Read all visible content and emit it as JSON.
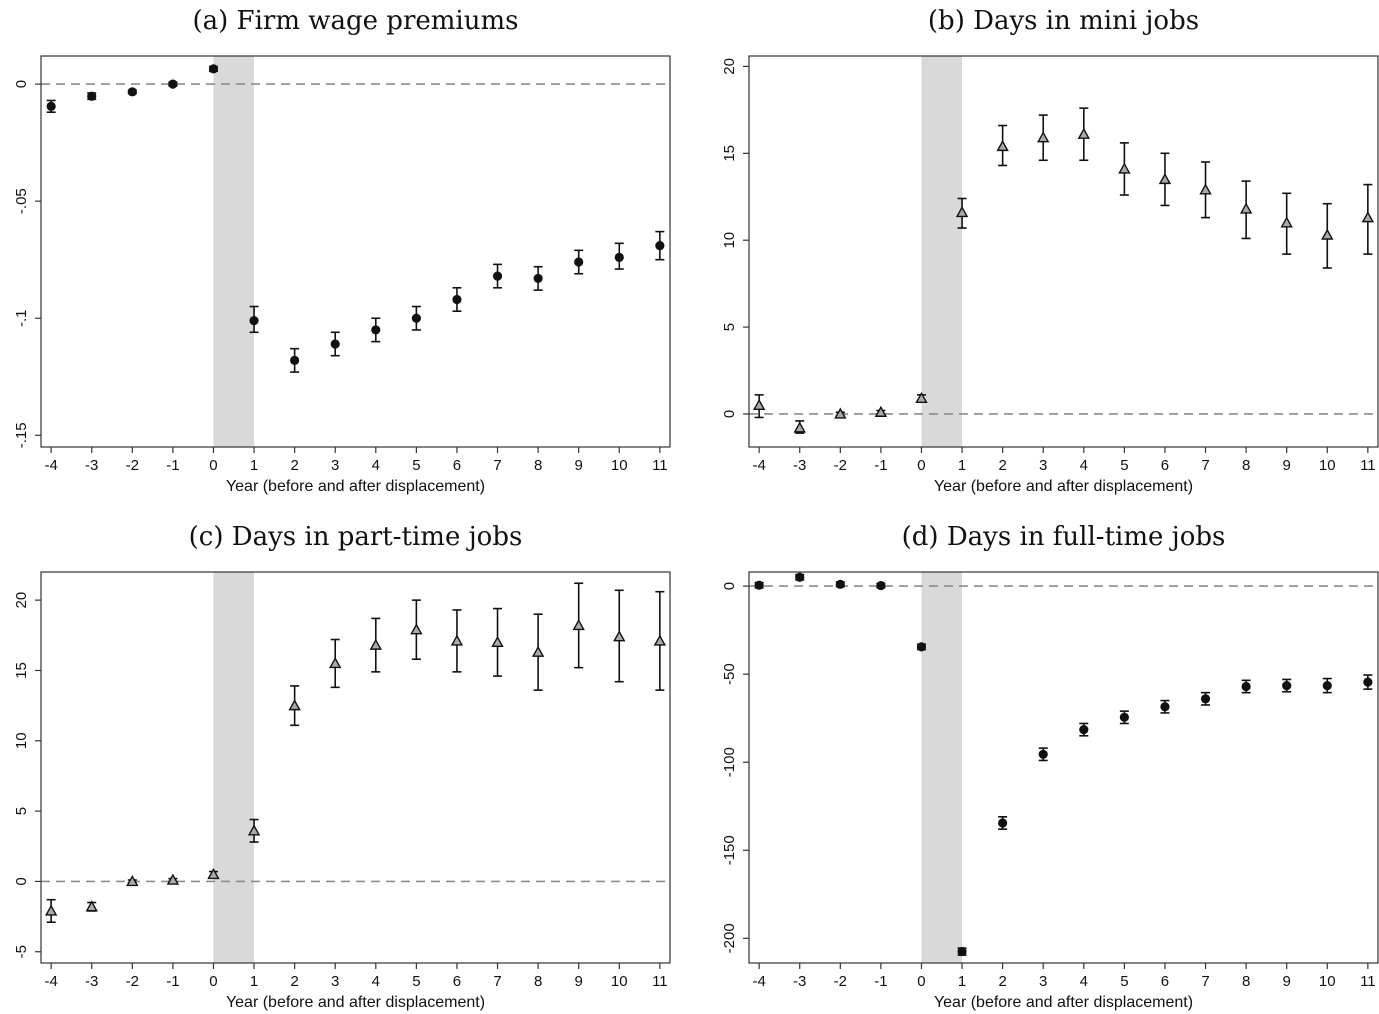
{
  "chart_data": [
    {
      "type": "scatter",
      "title": "(a) Firm wage premiums",
      "xlabel": "Year (before and after displacement)",
      "ylabel": "",
      "x": [
        -4,
        -3,
        -2,
        -1,
        0,
        1,
        2,
        3,
        4,
        5,
        6,
        7,
        8,
        9,
        10,
        11
      ],
      "xticks": [
        "-4",
        "-3",
        "-2",
        "-1",
        "0",
        "1",
        "2",
        "3",
        "4",
        "5",
        "6",
        "7",
        "8",
        "9",
        "10",
        "11"
      ],
      "yticks": [
        0,
        -0.05,
        -0.1,
        -0.15
      ],
      "ytick_labels": [
        "0",
        "-.05",
        "-.1",
        "-.15"
      ],
      "ylim": [
        -0.155,
        0.012
      ],
      "xlim": [
        -4.25,
        11.25
      ],
      "marker": "circle",
      "values": [
        -0.0095,
        -0.0052,
        -0.0033,
        0.0,
        0.0065,
        -0.101,
        -0.118,
        -0.111,
        -0.105,
        -0.1,
        -0.092,
        -0.082,
        -0.083,
        -0.076,
        -0.074,
        -0.069
      ],
      "ci_low": [
        -0.012,
        -0.0065,
        -0.004,
        -0.0008,
        0.0055,
        -0.106,
        -0.123,
        -0.116,
        -0.11,
        -0.105,
        -0.097,
        -0.087,
        -0.088,
        -0.081,
        -0.079,
        -0.075
      ],
      "ci_high": [
        -0.007,
        -0.0038,
        -0.0026,
        0.0008,
        0.0075,
        -0.095,
        -0.113,
        -0.106,
        -0.1,
        -0.095,
        -0.087,
        -0.077,
        -0.078,
        -0.071,
        -0.068,
        -0.063
      ],
      "shaded_x": [
        0,
        1
      ],
      "reference_y": 0
    },
    {
      "type": "scatter",
      "title": "(b) Days in mini jobs",
      "xlabel": "Year (before and after displacement)",
      "ylabel": "",
      "x": [
        -4,
        -3,
        -2,
        -1,
        0,
        1,
        2,
        3,
        4,
        5,
        6,
        7,
        8,
        9,
        10,
        11
      ],
      "xticks": [
        "-4",
        "-3",
        "-2",
        "-1",
        "0",
        "1",
        "2",
        "3",
        "4",
        "5",
        "6",
        "7",
        "8",
        "9",
        "10",
        "11"
      ],
      "yticks": [
        0,
        5,
        10,
        15,
        20
      ],
      "ytick_labels": [
        "0",
        "5",
        "10",
        "15",
        "20"
      ],
      "ylim": [
        -1.9,
        20.6
      ],
      "xlim": [
        -4.25,
        11.25
      ],
      "marker": "triangle",
      "values": [
        0.5,
        -0.8,
        0.0,
        0.1,
        0.9,
        11.6,
        15.4,
        15.9,
        16.1,
        14.1,
        13.5,
        12.9,
        11.8,
        11.0,
        10.3,
        11.3
      ],
      "ci_low": [
        -0.2,
        -1.1,
        -0.1,
        0.0,
        0.7,
        10.7,
        14.3,
        14.6,
        14.6,
        12.6,
        12.0,
        11.3,
        10.1,
        9.2,
        8.4,
        9.2
      ],
      "ci_high": [
        1.1,
        -0.4,
        0.1,
        0.2,
        1.1,
        12.4,
        16.6,
        17.2,
        17.6,
        15.6,
        15.0,
        14.5,
        13.4,
        12.7,
        12.1,
        13.2
      ],
      "shaded_x": [
        0,
        1
      ],
      "reference_y": 0
    },
    {
      "type": "scatter",
      "title": "(c) Days in part-time jobs",
      "xlabel": "Year (before and after displacement)",
      "ylabel": "",
      "x": [
        -4,
        -3,
        -2,
        -1,
        0,
        1,
        2,
        3,
        4,
        5,
        6,
        7,
        8,
        9,
        10,
        11
      ],
      "xticks": [
        "-4",
        "-3",
        "-2",
        "-1",
        "0",
        "1",
        "2",
        "3",
        "4",
        "5",
        "6",
        "7",
        "8",
        "9",
        "10",
        "11"
      ],
      "yticks": [
        -5,
        0,
        5,
        10,
        15,
        20
      ],
      "ytick_labels": [
        "-5",
        "0",
        "5",
        "10",
        "15",
        "20"
      ],
      "ylim": [
        -5.8,
        22.0
      ],
      "xlim": [
        -4.25,
        11.25
      ],
      "marker": "triangle",
      "values": [
        -2.1,
        -1.8,
        0.0,
        0.1,
        0.5,
        3.6,
        12.5,
        15.5,
        16.8,
        17.9,
        17.1,
        17.0,
        16.3,
        18.2,
        17.4,
        17.1
      ],
      "ci_low": [
        -2.9,
        -2.1,
        -0.1,
        0.0,
        0.3,
        2.8,
        11.1,
        13.8,
        14.9,
        15.8,
        14.9,
        14.6,
        13.6,
        15.2,
        14.2,
        13.6
      ],
      "ci_high": [
        -1.3,
        -1.5,
        0.1,
        0.2,
        0.7,
        4.4,
        13.9,
        17.2,
        18.7,
        20.0,
        19.3,
        19.4,
        19.0,
        21.2,
        20.7,
        20.6
      ],
      "shaded_x": [
        0,
        1
      ],
      "reference_y": 0
    },
    {
      "type": "scatter",
      "title": "(d) Days in full-time jobs",
      "xlabel": "Year (before and after displacement)",
      "ylabel": "",
      "x": [
        -4,
        -3,
        -2,
        -1,
        0,
        1,
        2,
        3,
        4,
        5,
        6,
        7,
        8,
        9,
        10,
        11
      ],
      "xticks": [
        "-4",
        "-3",
        "-2",
        "-1",
        "0",
        "1",
        "2",
        "3",
        "4",
        "5",
        "6",
        "7",
        "8",
        "9",
        "10",
        "11"
      ],
      "yticks": [
        0,
        -50,
        -100,
        -150,
        -200
      ],
      "ytick_labels": [
        "0",
        "-50",
        "-100",
        "-150",
        "-200"
      ],
      "ylim": [
        -214,
        8
      ],
      "xlim": [
        -4.25,
        11.25
      ],
      "marker": "circle",
      "values": [
        0.5,
        5.0,
        1.0,
        0.3,
        -34.5,
        -207.5,
        -134.5,
        -95.5,
        -81.5,
        -74.5,
        -68.5,
        -64.0,
        -57.0,
        -56.5,
        -56.5,
        -54.5
      ],
      "ci_low": [
        -1.0,
        3.5,
        -0.3,
        -0.9,
        -36.0,
        -209.5,
        -138.0,
        -99.0,
        -85.0,
        -78.0,
        -72.0,
        -67.5,
        -60.5,
        -60.0,
        -60.5,
        -58.5
      ],
      "ci_high": [
        2.0,
        6.5,
        2.3,
        1.5,
        -33.0,
        -205.5,
        -131.0,
        -92.0,
        -78.0,
        -71.0,
        -65.0,
        -60.5,
        -53.5,
        -53.0,
        -52.5,
        -50.5
      ],
      "shaded_x": [
        0,
        1
      ],
      "reference_y": 0
    }
  ]
}
